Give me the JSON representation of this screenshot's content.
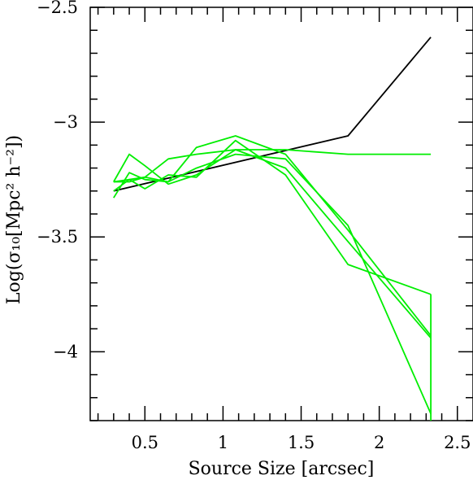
{
  "chart_data": {
    "type": "line",
    "xlabel": "Source Size [arcsec]",
    "ylabel": "Log(σ₁₀[Mpc² h⁻²])",
    "xlim": [
      0.15,
      2.6
    ],
    "ylim": [
      -4.3,
      -2.5
    ],
    "x_ticks": [
      0.5,
      1,
      1.5,
      2,
      2.5
    ],
    "x_tick_labels": [
      "0.5",
      "1",
      "1.5",
      "2",
      "2.5"
    ],
    "y_ticks": [
      -4,
      -3.5,
      -3,
      -2.5
    ],
    "y_tick_labels": [
      "−4",
      "−3.5",
      "−3",
      "−2.5"
    ],
    "grid": false,
    "legend": "none",
    "series": [
      {
        "color": "#000000",
        "x": [
          0.3,
          1.8,
          2.33
        ],
        "y": [
          -3.3,
          -3.06,
          -2.63
        ]
      },
      {
        "color": "#00ee00",
        "x": [
          0.3,
          0.4,
          0.5,
          0.65,
          0.83,
          1.08,
          1.4,
          1.8,
          2.33
        ],
        "y": [
          -3.26,
          -3.14,
          -3.19,
          -3.27,
          -3.23,
          -3.12,
          -3.12,
          -3.14,
          -3.14
        ]
      },
      {
        "color": "#00ee00",
        "x": [
          0.3,
          0.4,
          0.5,
          0.65,
          0.83,
          1.08,
          1.4,
          1.8,
          2.33
        ],
        "y": [
          -3.33,
          -3.22,
          -3.25,
          -3.26,
          -3.11,
          -3.06,
          -3.14,
          -3.47,
          -3.93
        ]
      },
      {
        "color": "#00ee00",
        "x": [
          0.3,
          0.4,
          0.5,
          0.65,
          0.83,
          1.08,
          1.4,
          1.8,
          2.33
        ],
        "y": [
          -3.26,
          -3.25,
          -3.24,
          -3.16,
          -3.14,
          -3.12,
          -3.2,
          -3.52,
          -3.94
        ]
      },
      {
        "color": "#00ee00",
        "x": [
          0.3,
          0.4,
          0.5,
          0.65,
          0.83,
          1.08,
          1.4,
          1.8,
          2.33
        ],
        "y": [
          -3.3,
          -3.25,
          -3.29,
          -3.23,
          -3.24,
          -3.08,
          -3.23,
          -3.62,
          -3.75
        ]
      },
      {
        "color": "#00ee00",
        "x": [
          0.3,
          0.4,
          0.5,
          0.65,
          0.83,
          1.08,
          1.4,
          1.8,
          2.33
        ],
        "y": [
          -3.26,
          -3.26,
          -3.24,
          -3.26,
          -3.2,
          -3.14,
          -3.16,
          -3.45,
          -4.27
        ]
      },
      {
        "color": "#00ee00",
        "x": [
          2.33,
          2.33
        ],
        "y": [
          -3.75,
          -4.3
        ]
      }
    ]
  }
}
